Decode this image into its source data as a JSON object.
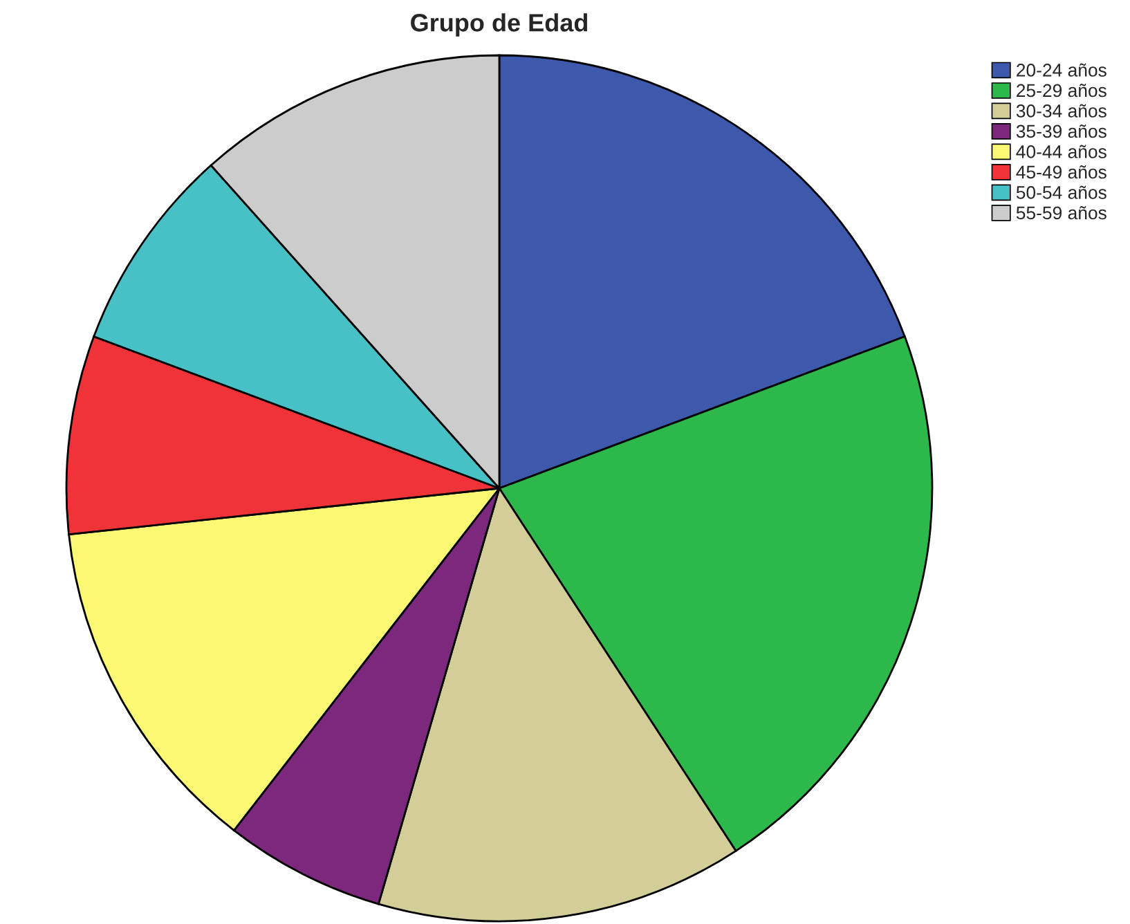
{
  "chart_data": {
    "type": "pie",
    "title": "Grupo de Edad",
    "categories": [
      "20-24 años",
      "25-29 años",
      "30-34 años",
      "35-39 años",
      "40-44 años",
      "45-49 años",
      "50-54 años",
      "55-59 años"
    ],
    "values": [
      19.3,
      21.5,
      13.7,
      6.0,
      12.8,
      7.4,
      7.7,
      11.6
    ],
    "colors": [
      "#3e58ac",
      "#2db84b",
      "#d3ce97",
      "#7b287d",
      "#fbf873",
      "#ef3338",
      "#48c1c6",
      "#cccccc"
    ],
    "legend": "top right"
  }
}
